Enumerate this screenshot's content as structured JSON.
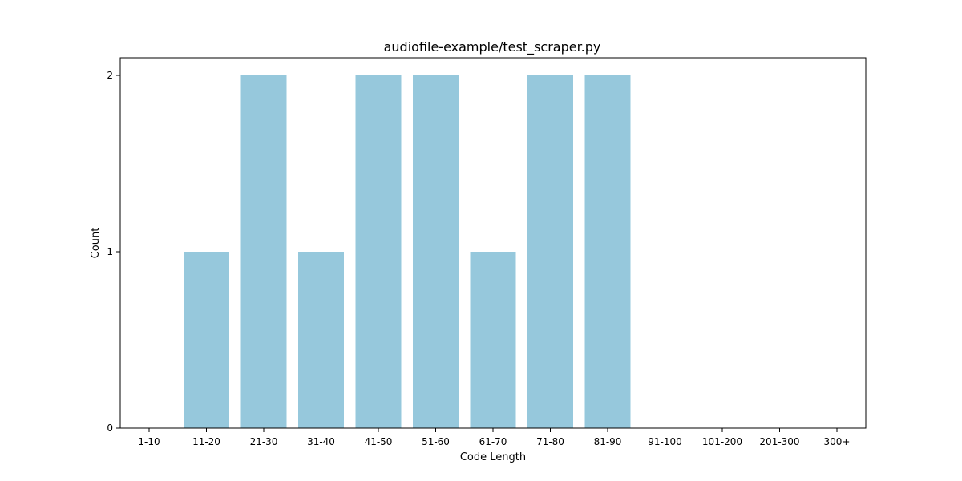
{
  "chart_data": {
    "type": "bar",
    "title": "audiofile-example/test_scraper.py",
    "xlabel": "Code Length",
    "ylabel": "Count",
    "categories": [
      "1-10",
      "11-20",
      "21-30",
      "31-40",
      "41-50",
      "51-60",
      "61-70",
      "71-80",
      "81-90",
      "91-100",
      "101-200",
      "201-300",
      "300+"
    ],
    "values": [
      0,
      1,
      2,
      1,
      2,
      2,
      1,
      2,
      2,
      0,
      0,
      0,
      0
    ],
    "yticks": [
      0,
      1,
      2
    ],
    "ylim": [
      0,
      2.1
    ],
    "grid": false,
    "bar_color": "#96c8dc"
  }
}
